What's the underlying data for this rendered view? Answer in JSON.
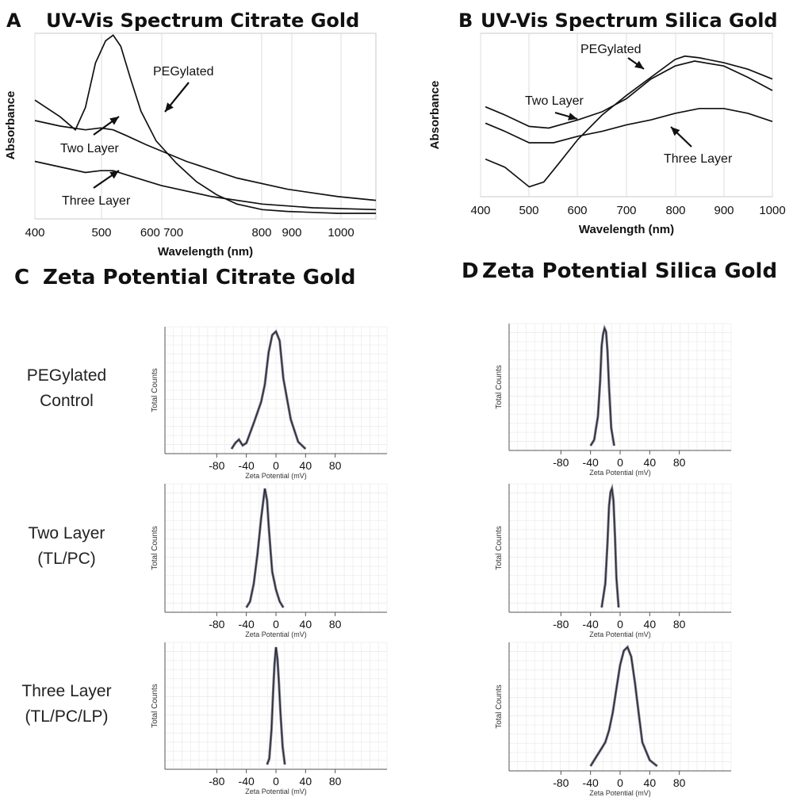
{
  "chart_data": [
    {
      "panel": "A",
      "type": "line",
      "title": "UV-Vis Spectrum Citrate Gold",
      "xlabel": "Wavelength (nm)",
      "ylabel": "Absorbance",
      "x_tick_labels": [
        "400",
        "500",
        "600 700",
        "800",
        "900",
        "1000"
      ],
      "xlim": [
        400,
        1075
      ],
      "ylim": [
        0,
        1
      ],
      "grid": "vertical",
      "series": [
        {
          "name": "PEGylated",
          "x": [
            400,
            450,
            480,
            500,
            520,
            540,
            555,
            570,
            590,
            610,
            640,
            680,
            720,
            760,
            800,
            850,
            900,
            950,
            1000,
            1075
          ],
          "y": [
            0.64,
            0.55,
            0.48,
            0.6,
            0.84,
            0.96,
            0.99,
            0.93,
            0.75,
            0.58,
            0.42,
            0.3,
            0.2,
            0.13,
            0.08,
            0.05,
            0.04,
            0.035,
            0.03,
            0.03
          ]
        },
        {
          "name": "Two Layer",
          "x": [
            400,
            450,
            500,
            530,
            555,
            580,
            620,
            700,
            800,
            900,
            1000,
            1075
          ],
          "y": [
            0.53,
            0.5,
            0.48,
            0.49,
            0.48,
            0.45,
            0.4,
            0.31,
            0.22,
            0.16,
            0.12,
            0.1
          ]
        },
        {
          "name": "Three Layer",
          "x": [
            400,
            450,
            500,
            530,
            555,
            590,
            650,
            750,
            850,
            950,
            1075
          ],
          "y": [
            0.31,
            0.28,
            0.25,
            0.26,
            0.26,
            0.23,
            0.18,
            0.12,
            0.08,
            0.06,
            0.05
          ]
        }
      ],
      "annotations": [
        {
          "text": "PEGylated",
          "target": "PEGylated"
        },
        {
          "text": "Two Layer",
          "target": "Two Layer"
        },
        {
          "text": "Three Layer",
          "target": "Three Layer"
        }
      ]
    },
    {
      "panel": "B",
      "type": "line",
      "title": "UV-Vis Spectrum Silica Gold",
      "xlabel": "Wavelength (nm)",
      "ylabel": "Absorbance",
      "x_tick_labels": [
        "400",
        "500",
        "600",
        "700",
        "800",
        "900",
        "1000"
      ],
      "xlim": [
        400,
        1000
      ],
      "ylim": [
        0,
        1
      ],
      "grid": "vertical",
      "series": [
        {
          "name": "PEGylated",
          "x": [
            410,
            450,
            500,
            530,
            560,
            600,
            650,
            700,
            750,
            800,
            820,
            850,
            900,
            950,
            1000
          ],
          "y": [
            0.23,
            0.18,
            0.06,
            0.09,
            0.2,
            0.35,
            0.5,
            0.62,
            0.73,
            0.84,
            0.86,
            0.85,
            0.82,
            0.78,
            0.72
          ]
        },
        {
          "name": "Two Layer",
          "x": [
            410,
            450,
            500,
            540,
            600,
            650,
            700,
            750,
            800,
            840,
            900,
            950,
            1000
          ],
          "y": [
            0.55,
            0.5,
            0.43,
            0.42,
            0.47,
            0.52,
            0.6,
            0.72,
            0.8,
            0.83,
            0.8,
            0.73,
            0.65
          ]
        },
        {
          "name": "Three Layer",
          "x": [
            410,
            450,
            500,
            550,
            600,
            650,
            700,
            750,
            800,
            850,
            900,
            950,
            1000
          ],
          "y": [
            0.45,
            0.4,
            0.33,
            0.33,
            0.37,
            0.4,
            0.44,
            0.47,
            0.51,
            0.54,
            0.54,
            0.51,
            0.46
          ]
        }
      ],
      "annotations": [
        {
          "text": "PEGylated",
          "target": "PEGylated"
        },
        {
          "text": "Two Layer",
          "target": "Two Layer"
        },
        {
          "text": "Three Layer",
          "target": "Three Layer"
        }
      ]
    },
    {
      "panel": "C",
      "title": "Zeta Potential Citrate Gold",
      "type": "line",
      "xlabel": "Zeta Potential (mV)",
      "ylabel": "Total Counts",
      "x_ticks": [
        -80,
        -40,
        0,
        40,
        80
      ],
      "xlim": [
        -150,
        150
      ],
      "rows": [
        {
          "label_lines": [
            "PEGylated",
            "Control"
          ],
          "x": [
            -60,
            -55,
            -50,
            -45,
            -40,
            -30,
            -20,
            -15,
            -10,
            -5,
            0,
            5,
            10,
            20,
            30,
            40
          ],
          "y": [
            0.0,
            0.05,
            0.08,
            0.03,
            0.05,
            0.22,
            0.4,
            0.55,
            0.82,
            0.97,
            1.0,
            0.92,
            0.6,
            0.25,
            0.06,
            0.0
          ]
        },
        {
          "label_lines": [
            "Two Layer",
            "(TL/PC)"
          ],
          "x": [
            -40,
            -35,
            -30,
            -25,
            -20,
            -17,
            -15,
            -12,
            -10,
            -7,
            -5,
            0,
            5,
            10
          ],
          "y": [
            0.0,
            0.05,
            0.2,
            0.45,
            0.75,
            0.9,
            1.0,
            0.9,
            0.7,
            0.45,
            0.3,
            0.15,
            0.05,
            0.0
          ]
        },
        {
          "label_lines": [
            "Three Layer",
            "(TL/PC/LP)"
          ],
          "x": [
            -12,
            -9,
            -6,
            -4,
            -2,
            0,
            2,
            4,
            6,
            9,
            12
          ],
          "y": [
            0.0,
            0.05,
            0.3,
            0.6,
            0.85,
            1.0,
            0.9,
            0.7,
            0.45,
            0.15,
            0.0
          ]
        }
      ]
    },
    {
      "panel": "D",
      "title": "Zeta Potential Silica Gold",
      "type": "line",
      "xlabel": "Zeta Potential (mV)",
      "ylabel": "Total Counts",
      "x_ticks": [
        -80,
        -40,
        0,
        40,
        80
      ],
      "xlim": [
        -150,
        150
      ],
      "rows": [
        {
          "x": [
            -40,
            -35,
            -30,
            -27,
            -25,
            -23,
            -21,
            -19,
            -17,
            -15,
            -12,
            -8
          ],
          "y": [
            0.0,
            0.05,
            0.25,
            0.55,
            0.85,
            0.95,
            1.0,
            0.97,
            0.8,
            0.5,
            0.15,
            0.0
          ]
        },
        {
          "x": [
            -25,
            -20,
            -17,
            -15,
            -13,
            -11,
            -9,
            -7,
            -5,
            -2
          ],
          "y": [
            0.0,
            0.2,
            0.55,
            0.85,
            0.97,
            1.0,
            0.9,
            0.6,
            0.25,
            0.0
          ]
        },
        {
          "x": [
            -40,
            -35,
            -30,
            -25,
            -20,
            -15,
            -10,
            -5,
            0,
            5,
            10,
            15,
            20,
            25,
            30,
            40,
            50
          ],
          "y": [
            0.0,
            0.05,
            0.1,
            0.15,
            0.2,
            0.3,
            0.45,
            0.65,
            0.85,
            0.97,
            1.0,
            0.92,
            0.7,
            0.45,
            0.2,
            0.05,
            0.0
          ]
        }
      ]
    }
  ]
}
